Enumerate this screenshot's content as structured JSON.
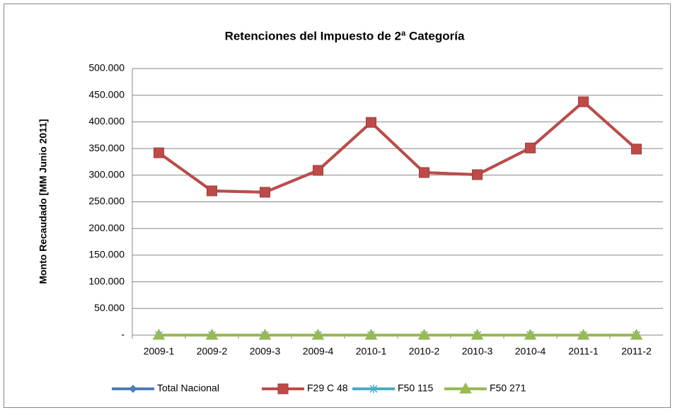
{
  "chart_data": {
    "type": "line",
    "title": "Retenciones del Impuesto de 2ª Categoría",
    "y_label": "Monto Recaudado [MM Junio 2011]",
    "categories": [
      "2009-1",
      "2009-2",
      "2009-3",
      "2009-4",
      "2010-1",
      "2010-2",
      "2010-3",
      "2010-4",
      "2011-1",
      "2011-2"
    ],
    "series": [
      {
        "name": "Total Nacional",
        "color": "#4a7ebb",
        "marker": "diamond",
        "values": [
          342000,
          270600,
          268000,
          309000,
          399000,
          305000,
          301000,
          351000,
          437700,
          349000
        ]
      },
      {
        "name": "F29 C 48",
        "color": "#be4b48",
        "marker": "square",
        "values": [
          342000,
          270600,
          268000,
          309000,
          399000,
          305000,
          301000,
          351000,
          437700,
          349000
        ]
      },
      {
        "name": "F50 115",
        "color": "#4bacc6",
        "marker": "star",
        "values": [
          0,
          0,
          0,
          0,
          0,
          0,
          0,
          0,
          0,
          0
        ]
      },
      {
        "name": "F50 271",
        "color": "#98b954",
        "marker": "triangle",
        "values": [
          0,
          0,
          0,
          0,
          0,
          0,
          0,
          0,
          0,
          0
        ]
      }
    ],
    "ylim": [
      0,
      500000
    ],
    "yticks": [
      {
        "value": 0,
        "label": "-"
      },
      {
        "value": 50000,
        "label": "50.000"
      },
      {
        "value": 100000,
        "label": "100.000"
      },
      {
        "value": 150000,
        "label": "150.000"
      },
      {
        "value": 200000,
        "label": "200.000"
      },
      {
        "value": 250000,
        "label": "250.000"
      },
      {
        "value": 300000,
        "label": "300.000"
      },
      {
        "value": 350000,
        "label": "350.000"
      },
      {
        "value": 400000,
        "label": "400.000"
      },
      {
        "value": 450000,
        "label": "450.000"
      },
      {
        "value": 500000,
        "label": "500.000"
      }
    ],
    "grid": true,
    "legend": "bottom"
  }
}
